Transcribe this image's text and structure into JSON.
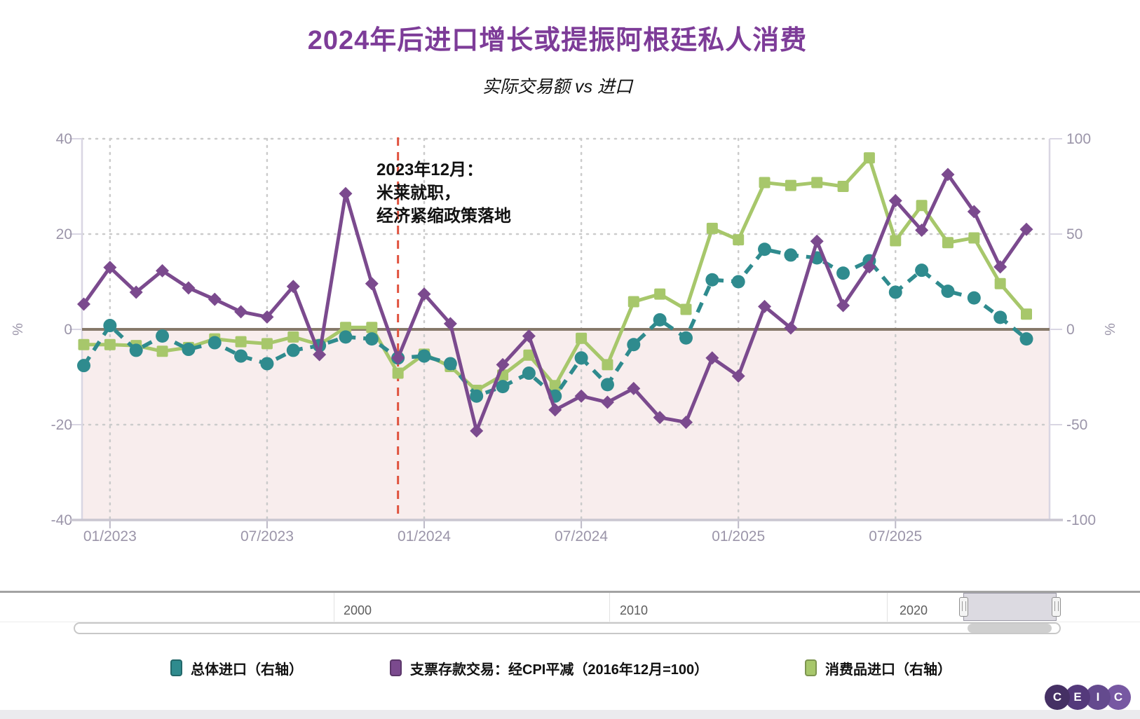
{
  "header": {
    "title": "2024年后进口增长或提振阿根廷私人消费",
    "subtitle": "实际交易额 vs 进口"
  },
  "annotation": {
    "lines": [
      "2023年12月：",
      "米莱就职，",
      "经济紧缩政策落地"
    ],
    "month": "12/2023"
  },
  "chart_data": {
    "type": "line",
    "title": "2024年后进口增长或提振阿根廷私人消费",
    "subtitle": "实际交易额 vs 进口",
    "categories": [
      "12/2022",
      "01/2023",
      "02/2023",
      "03/2023",
      "04/2023",
      "05/2023",
      "06/2023",
      "07/2023",
      "08/2023",
      "09/2023",
      "10/2023",
      "11/2023",
      "12/2023",
      "01/2024",
      "02/2024",
      "03/2024",
      "04/2024",
      "05/2024",
      "06/2024",
      "07/2024",
      "08/2024",
      "09/2024",
      "10/2024",
      "11/2024",
      "12/2024",
      "01/2025",
      "02/2025",
      "03/2025",
      "04/2025",
      "05/2025",
      "06/2025",
      "07/2025",
      "08/2025",
      "09/2025",
      "10/2025",
      "11/2025",
      "12/2025"
    ],
    "x_tick_labels": [
      "01/2023",
      "07/2023",
      "01/2024",
      "07/2024",
      "01/2025",
      "07/2025"
    ],
    "x_tick_indices": [
      1,
      7,
      13,
      19,
      25,
      31
    ],
    "left_axis": {
      "label": "%",
      "ticks": [
        40,
        20,
        0,
        -20,
        -40
      ],
      "min": -40,
      "max": 40
    },
    "right_axis": {
      "label": "%",
      "ticks": [
        100,
        50,
        0,
        -50,
        -100
      ],
      "min": -100,
      "max": 100
    },
    "annotation_month_index": 12,
    "series": [
      {
        "name": "总体进口（右轴）",
        "axis": "right",
        "color": "#2f8b8e",
        "marker": "circle",
        "line_style": "dashed",
        "values": [
          -19,
          2,
          -11,
          -3.5,
          -10.5,
          -7,
          -14,
          -18,
          -11,
          -8.5,
          -4,
          -5,
          -15,
          -14,
          -18,
          -35,
          -30,
          -23,
          -35,
          -15,
          -29,
          -8,
          5,
          -4.5,
          26,
          25,
          42,
          39,
          37.5,
          29.5,
          36,
          19.5,
          31,
          20,
          16.5,
          6.3,
          -5
        ]
      },
      {
        "name": "支票存款交易：经CPI平减（2016年12月=100）",
        "axis": "left",
        "color": "#7b4a8e",
        "marker": "diamond",
        "line_style": "solid",
        "values": [
          5.3,
          13,
          7.8,
          12.3,
          8.7,
          6.3,
          3.7,
          2.6,
          9,
          -5.3,
          28.5,
          9.6,
          -6,
          7.4,
          1.2,
          -21.3,
          -7.4,
          -1.4,
          -16.9,
          -14,
          -15.3,
          -12.4,
          -18.5,
          -19.5,
          -6,
          -9.8,
          4.8,
          0.3,
          18.5,
          5,
          13.1,
          27,
          20.8,
          32.5,
          24.7,
          13.1,
          21
        ]
      },
      {
        "name": "消费品进口（右轴）",
        "axis": "right",
        "color": "#a7c76b",
        "marker": "square",
        "line_style": "solid",
        "values": [
          -8,
          -8,
          -8.5,
          -11.5,
          -9.5,
          -5,
          -6.5,
          -7.5,
          -4,
          -8,
          1,
          1,
          -23,
          -13,
          -19.5,
          -32,
          -24,
          -13.5,
          -29.5,
          -4.7,
          -18.5,
          14.5,
          18.5,
          10.5,
          53,
          47,
          77,
          75.5,
          77,
          75,
          90,
          46.5,
          65,
          45.5,
          48,
          24,
          8
        ]
      }
    ]
  },
  "colors": {
    "title": "#7d3c98",
    "axis_text": "#9b95a9",
    "grid": "#cbcbcb",
    "axis_line": "#d9d6e3",
    "baseline": "#c9c6d1",
    "zero_line": "#86796a",
    "below_zero_fill": "#f8eded",
    "annotation_line": "#e0523e"
  },
  "navigator": {
    "year_labels": [
      "2000",
      "2010",
      "2020"
    ]
  },
  "logo": {
    "letters": [
      "C",
      "E",
      "I",
      "C"
    ],
    "colors": [
      "#453064",
      "#54397b",
      "#644a8e",
      "#7758a2"
    ]
  }
}
